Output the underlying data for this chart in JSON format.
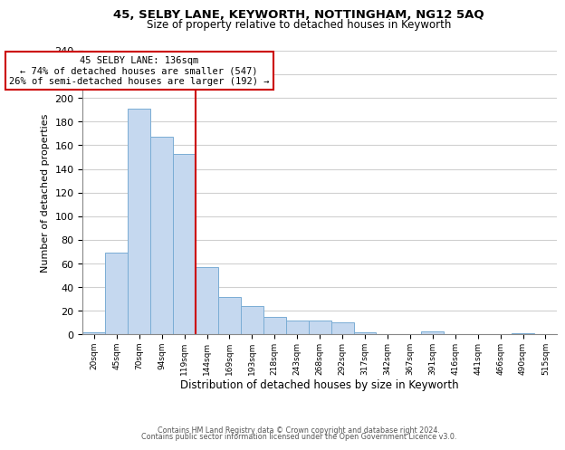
{
  "title1": "45, SELBY LANE, KEYWORTH, NOTTINGHAM, NG12 5AQ",
  "title2": "Size of property relative to detached houses in Keyworth",
  "xlabel": "Distribution of detached houses by size in Keyworth",
  "ylabel": "Number of detached properties",
  "bar_labels": [
    "20sqm",
    "45sqm",
    "70sqm",
    "94sqm",
    "119sqm",
    "144sqm",
    "169sqm",
    "193sqm",
    "218sqm",
    "243sqm",
    "268sqm",
    "292sqm",
    "317sqm",
    "342sqm",
    "367sqm",
    "391sqm",
    "416sqm",
    "441sqm",
    "466sqm",
    "490sqm",
    "515sqm"
  ],
  "bar_values": [
    2,
    69,
    191,
    167,
    153,
    57,
    32,
    24,
    15,
    12,
    12,
    10,
    2,
    0,
    0,
    3,
    0,
    0,
    0,
    1,
    0
  ],
  "bar_color": "#c5d8ef",
  "bar_edge_color": "#7aadd4",
  "property_line_label": "45 SELBY LANE: 136sqm",
  "annotation_line1": "← 74% of detached houses are smaller (547)",
  "annotation_line2": "26% of semi-detached houses are larger (192) →",
  "vline_color": "#cc0000",
  "annotation_box_edge": "#cc0000",
  "vline_index": 4.5,
  "ylim": [
    0,
    240
  ],
  "yticks": [
    0,
    20,
    40,
    60,
    80,
    100,
    120,
    140,
    160,
    180,
    200,
    220,
    240
  ],
  "footnote1": "Contains HM Land Registry data © Crown copyright and database right 2024.",
  "footnote2": "Contains public sector information licensed under the Open Government Licence v3.0.",
  "bg_color": "#ffffff",
  "grid_color": "#d0d0d0"
}
